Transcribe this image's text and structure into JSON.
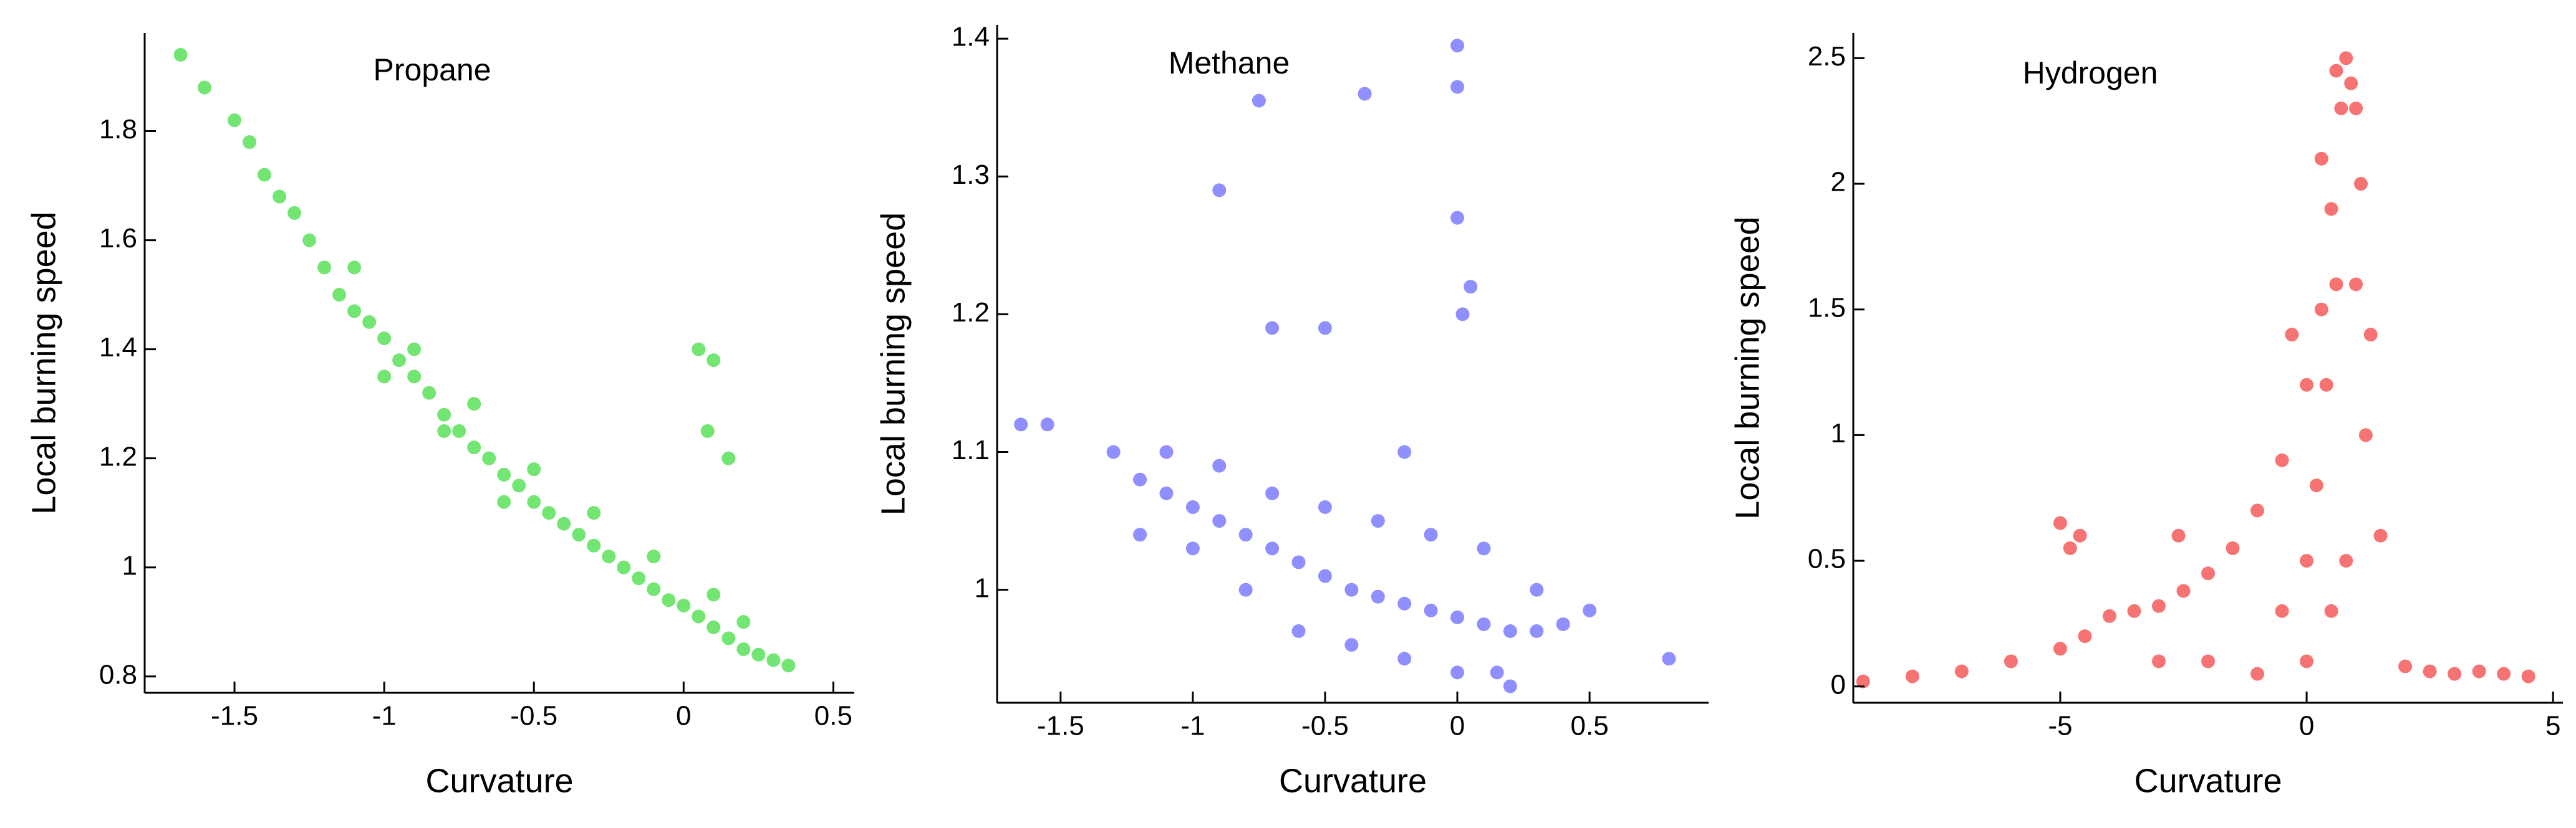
{
  "chart_data": [
    {
      "type": "scatter",
      "title": "Propane",
      "xlabel": "Curvature",
      "ylabel": "Local burning speed",
      "color": "#00d000",
      "xlim": [
        -1.8,
        0.57
      ],
      "ylim": [
        0.77,
        1.98
      ],
      "xticks": [
        -1.5,
        -1,
        -0.5,
        0,
        0.5
      ],
      "yticks": [
        0.8,
        1,
        1.2,
        1.4,
        1.6,
        1.8
      ],
      "x": [
        -1.68,
        -1.6,
        -1.5,
        -1.45,
        -1.4,
        -1.35,
        -1.3,
        -1.25,
        -1.2,
        -1.15,
        -1.1,
        -1.05,
        -1.0,
        -0.95,
        -0.9,
        -0.85,
        -0.8,
        -0.75,
        -0.7,
        -0.65,
        -0.6,
        -0.55,
        -0.5,
        -0.45,
        -0.4,
        -0.35,
        -0.3,
        -0.25,
        -0.2,
        -0.15,
        -0.1,
        -0.05,
        0,
        0.05,
        0.1,
        0.15,
        0.2,
        0.25,
        0.3,
        0.35,
        0.05,
        0.1,
        0.08,
        0.15,
        -1.1,
        -0.9,
        -0.7,
        -0.5,
        -0.3,
        -0.1,
        0.1,
        0.2,
        -1.0,
        -0.8,
        -0.6
      ],
      "values": [
        1.94,
        1.88,
        1.82,
        1.78,
        1.72,
        1.68,
        1.65,
        1.6,
        1.55,
        1.5,
        1.47,
        1.45,
        1.42,
        1.38,
        1.35,
        1.32,
        1.28,
        1.25,
        1.22,
        1.2,
        1.17,
        1.15,
        1.12,
        1.1,
        1.08,
        1.06,
        1.04,
        1.02,
        1.0,
        0.98,
        0.96,
        0.94,
        0.93,
        0.91,
        0.89,
        0.87,
        0.85,
        0.84,
        0.83,
        0.82,
        1.4,
        1.38,
        1.25,
        1.2,
        1.55,
        1.4,
        1.3,
        1.18,
        1.1,
        1.02,
        0.95,
        0.9,
        1.35,
        1.25,
        1.12
      ]
    },
    {
      "type": "scatter",
      "title": "Methane",
      "xlabel": "Curvature",
      "ylabel": "Local burning speed",
      "color": "#3333ff",
      "xlim": [
        -1.74,
        0.95
      ],
      "ylim": [
        0.918,
        1.41
      ],
      "xticks": [
        -1.5,
        -1,
        -0.5,
        0,
        0.5
      ],
      "yticks": [
        1,
        1.1,
        1.2,
        1.3,
        1.4
      ],
      "x": [
        -1.65,
        -1.55,
        -1.3,
        -1.2,
        -1.1,
        -1.0,
        -0.9,
        -0.8,
        -0.7,
        -0.6,
        -0.5,
        -0.4,
        -0.3,
        -0.2,
        -0.1,
        0,
        0.1,
        0.2,
        0.3,
        0.4,
        0.5,
        -1.2,
        -1.0,
        -0.8,
        -0.6,
        -0.4,
        -0.2,
        0,
        0.2,
        -1.1,
        -0.9,
        -0.7,
        -0.5,
        -0.3,
        -0.1,
        0.1,
        0.3,
        -0.75,
        -0.9,
        -0.35,
        0,
        0,
        0,
        0.02,
        -0.7,
        -0.5,
        -0.2,
        0.8,
        0.15,
        0.05
      ],
      "values": [
        1.12,
        1.12,
        1.1,
        1.08,
        1.07,
        1.06,
        1.05,
        1.04,
        1.03,
        1.02,
        1.01,
        1.0,
        0.995,
        0.99,
        0.985,
        0.98,
        0.975,
        0.97,
        0.97,
        0.975,
        0.985,
        1.04,
        1.03,
        1.0,
        0.97,
        0.96,
        0.95,
        0.94,
        0.93,
        1.1,
        1.09,
        1.07,
        1.06,
        1.05,
        1.04,
        1.03,
        1.0,
        1.355,
        1.29,
        1.36,
        1.395,
        1.365,
        1.27,
        1.2,
        1.19,
        1.19,
        1.1,
        0.95,
        0.94,
        1.22
      ]
    },
    {
      "type": "scatter",
      "title": "Hydrogen",
      "xlabel": "Curvature",
      "ylabel": "Local burning speed",
      "color": "#ee0000",
      "xlim": [
        -9.2,
        5.2
      ],
      "ylim": [
        -0.065,
        2.6
      ],
      "xticks": [
        -5,
        0,
        5
      ],
      "yticks": [
        0,
        0.5,
        1,
        1.5,
        2,
        2.5
      ],
      "x": [
        -9,
        -8,
        -7,
        -6,
        -5,
        -4.5,
        -4,
        -3.5,
        -3,
        -2.5,
        -2,
        -1.5,
        -1,
        -0.5,
        0,
        0.3,
        0.5,
        0.7,
        0.9,
        1.1,
        1.3,
        1.5,
        2,
        2.5,
        3,
        3.5,
        4,
        4.5,
        -5,
        -4.8,
        -4.6,
        -2.6,
        -3,
        -2,
        -1,
        -0.5,
        0,
        0.2,
        0.4,
        0.6,
        0.8,
        1,
        1.2,
        0,
        0.5,
        0.8,
        -0.3,
        0.3,
        0.6,
        1
      ],
      "values": [
        0.02,
        0.04,
        0.06,
        0.1,
        0.15,
        0.2,
        0.28,
        0.3,
        0.32,
        0.38,
        0.45,
        0.55,
        0.7,
        0.9,
        1.2,
        1.5,
        1.9,
        2.3,
        2.4,
        2.0,
        1.4,
        0.6,
        0.08,
        0.06,
        0.05,
        0.06,
        0.05,
        0.04,
        0.65,
        0.55,
        0.6,
        0.6,
        0.1,
        0.1,
        0.05,
        0.3,
        0.5,
        0.8,
        1.2,
        1.6,
        2.5,
        2.3,
        1.0,
        0.1,
        0.3,
        0.5,
        1.4,
        2.1,
        2.45,
        1.6
      ]
    }
  ]
}
